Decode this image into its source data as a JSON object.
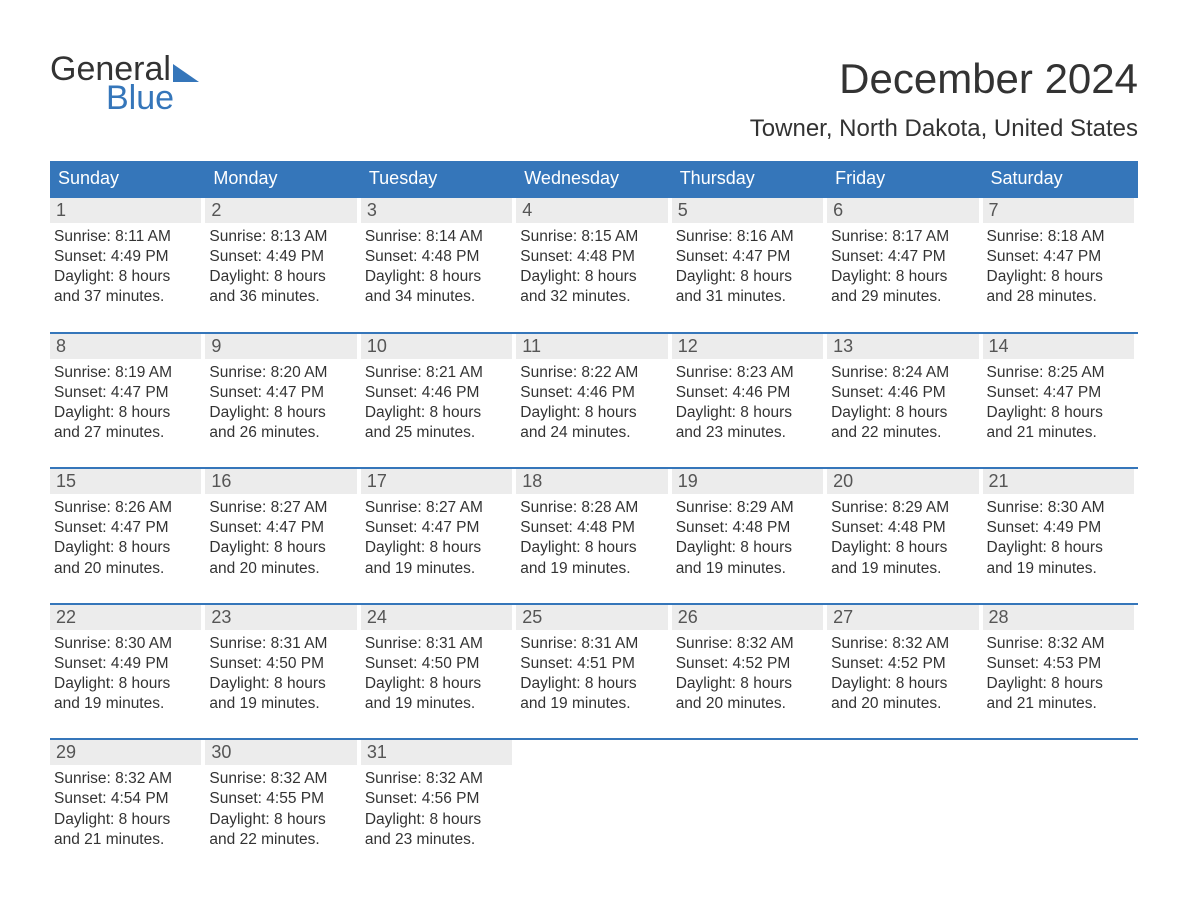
{
  "logo": {
    "word1": "General",
    "word2": "Blue"
  },
  "title": "December 2024",
  "location": "Towner, North Dakota, United States",
  "colors": {
    "brand_blue": "#3576ba",
    "header_bg": "#3576ba",
    "header_text": "#ffffff",
    "daynum_bg": "#ececec",
    "daynum_text": "#555555",
    "body_text": "#333333",
    "page_bg": "#ffffff"
  },
  "weekdays": [
    "Sunday",
    "Monday",
    "Tuesday",
    "Wednesday",
    "Thursday",
    "Friday",
    "Saturday"
  ],
  "weeks": [
    [
      {
        "n": "1",
        "sr": "Sunrise: 8:11 AM",
        "ss": "Sunset: 4:49 PM",
        "d1": "Daylight: 8 hours",
        "d2": "and 37 minutes."
      },
      {
        "n": "2",
        "sr": "Sunrise: 8:13 AM",
        "ss": "Sunset: 4:49 PM",
        "d1": "Daylight: 8 hours",
        "d2": "and 36 minutes."
      },
      {
        "n": "3",
        "sr": "Sunrise: 8:14 AM",
        "ss": "Sunset: 4:48 PM",
        "d1": "Daylight: 8 hours",
        "d2": "and 34 minutes."
      },
      {
        "n": "4",
        "sr": "Sunrise: 8:15 AM",
        "ss": "Sunset: 4:48 PM",
        "d1": "Daylight: 8 hours",
        "d2": "and 32 minutes."
      },
      {
        "n": "5",
        "sr": "Sunrise: 8:16 AM",
        "ss": "Sunset: 4:47 PM",
        "d1": "Daylight: 8 hours",
        "d2": "and 31 minutes."
      },
      {
        "n": "6",
        "sr": "Sunrise: 8:17 AM",
        "ss": "Sunset: 4:47 PM",
        "d1": "Daylight: 8 hours",
        "d2": "and 29 minutes."
      },
      {
        "n": "7",
        "sr": "Sunrise: 8:18 AM",
        "ss": "Sunset: 4:47 PM",
        "d1": "Daylight: 8 hours",
        "d2": "and 28 minutes."
      }
    ],
    [
      {
        "n": "8",
        "sr": "Sunrise: 8:19 AM",
        "ss": "Sunset: 4:47 PM",
        "d1": "Daylight: 8 hours",
        "d2": "and 27 minutes."
      },
      {
        "n": "9",
        "sr": "Sunrise: 8:20 AM",
        "ss": "Sunset: 4:47 PM",
        "d1": "Daylight: 8 hours",
        "d2": "and 26 minutes."
      },
      {
        "n": "10",
        "sr": "Sunrise: 8:21 AM",
        "ss": "Sunset: 4:46 PM",
        "d1": "Daylight: 8 hours",
        "d2": "and 25 minutes."
      },
      {
        "n": "11",
        "sr": "Sunrise: 8:22 AM",
        "ss": "Sunset: 4:46 PM",
        "d1": "Daylight: 8 hours",
        "d2": "and 24 minutes."
      },
      {
        "n": "12",
        "sr": "Sunrise: 8:23 AM",
        "ss": "Sunset: 4:46 PM",
        "d1": "Daylight: 8 hours",
        "d2": "and 23 minutes."
      },
      {
        "n": "13",
        "sr": "Sunrise: 8:24 AM",
        "ss": "Sunset: 4:46 PM",
        "d1": "Daylight: 8 hours",
        "d2": "and 22 minutes."
      },
      {
        "n": "14",
        "sr": "Sunrise: 8:25 AM",
        "ss": "Sunset: 4:47 PM",
        "d1": "Daylight: 8 hours",
        "d2": "and 21 minutes."
      }
    ],
    [
      {
        "n": "15",
        "sr": "Sunrise: 8:26 AM",
        "ss": "Sunset: 4:47 PM",
        "d1": "Daylight: 8 hours",
        "d2": "and 20 minutes."
      },
      {
        "n": "16",
        "sr": "Sunrise: 8:27 AM",
        "ss": "Sunset: 4:47 PM",
        "d1": "Daylight: 8 hours",
        "d2": "and 20 minutes."
      },
      {
        "n": "17",
        "sr": "Sunrise: 8:27 AM",
        "ss": "Sunset: 4:47 PM",
        "d1": "Daylight: 8 hours",
        "d2": "and 19 minutes."
      },
      {
        "n": "18",
        "sr": "Sunrise: 8:28 AM",
        "ss": "Sunset: 4:48 PM",
        "d1": "Daylight: 8 hours",
        "d2": "and 19 minutes."
      },
      {
        "n": "19",
        "sr": "Sunrise: 8:29 AM",
        "ss": "Sunset: 4:48 PM",
        "d1": "Daylight: 8 hours",
        "d2": "and 19 minutes."
      },
      {
        "n": "20",
        "sr": "Sunrise: 8:29 AM",
        "ss": "Sunset: 4:48 PM",
        "d1": "Daylight: 8 hours",
        "d2": "and 19 minutes."
      },
      {
        "n": "21",
        "sr": "Sunrise: 8:30 AM",
        "ss": "Sunset: 4:49 PM",
        "d1": "Daylight: 8 hours",
        "d2": "and 19 minutes."
      }
    ],
    [
      {
        "n": "22",
        "sr": "Sunrise: 8:30 AM",
        "ss": "Sunset: 4:49 PM",
        "d1": "Daylight: 8 hours",
        "d2": "and 19 minutes."
      },
      {
        "n": "23",
        "sr": "Sunrise: 8:31 AM",
        "ss": "Sunset: 4:50 PM",
        "d1": "Daylight: 8 hours",
        "d2": "and 19 minutes."
      },
      {
        "n": "24",
        "sr": "Sunrise: 8:31 AM",
        "ss": "Sunset: 4:50 PM",
        "d1": "Daylight: 8 hours",
        "d2": "and 19 minutes."
      },
      {
        "n": "25",
        "sr": "Sunrise: 8:31 AM",
        "ss": "Sunset: 4:51 PM",
        "d1": "Daylight: 8 hours",
        "d2": "and 19 minutes."
      },
      {
        "n": "26",
        "sr": "Sunrise: 8:32 AM",
        "ss": "Sunset: 4:52 PM",
        "d1": "Daylight: 8 hours",
        "d2": "and 20 minutes."
      },
      {
        "n": "27",
        "sr": "Sunrise: 8:32 AM",
        "ss": "Sunset: 4:52 PM",
        "d1": "Daylight: 8 hours",
        "d2": "and 20 minutes."
      },
      {
        "n": "28",
        "sr": "Sunrise: 8:32 AM",
        "ss": "Sunset: 4:53 PM",
        "d1": "Daylight: 8 hours",
        "d2": "and 21 minutes."
      }
    ],
    [
      {
        "n": "29",
        "sr": "Sunrise: 8:32 AM",
        "ss": "Sunset: 4:54 PM",
        "d1": "Daylight: 8 hours",
        "d2": "and 21 minutes."
      },
      {
        "n": "30",
        "sr": "Sunrise: 8:32 AM",
        "ss": "Sunset: 4:55 PM",
        "d1": "Daylight: 8 hours",
        "d2": "and 22 minutes."
      },
      {
        "n": "31",
        "sr": "Sunrise: 8:32 AM",
        "ss": "Sunset: 4:56 PM",
        "d1": "Daylight: 8 hours",
        "d2": "and 23 minutes."
      },
      null,
      null,
      null,
      null
    ]
  ]
}
